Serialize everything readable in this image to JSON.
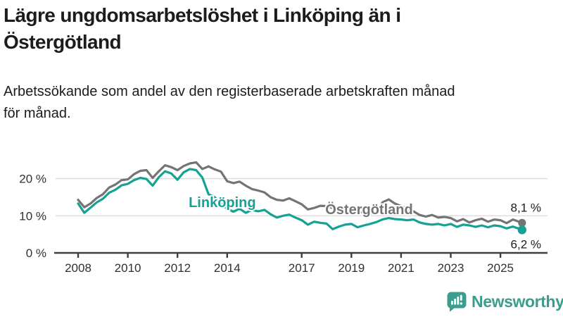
{
  "header": {
    "title_lines": [
      "Lägre ungdomsarbetslöshet i Linköping än i",
      "Östergötland"
    ],
    "subtitle_lines": [
      "Arbetssökande som andel av den registerbaserade arbetskraften månad",
      "för månad."
    ]
  },
  "chart_data": {
    "type": "line",
    "title": "Lägre ungdomsarbetslöshet i Linköping än i Östergötland",
    "subtitle": "Arbetssökande som andel av den registerbaserade arbetskraften månad för månad.",
    "unit": "%",
    "grid": "horizontal-only",
    "legend": "inline-series-labels",
    "xlim": [
      2007.8,
      2026.1
    ],
    "ylim": [
      0,
      27
    ],
    "x_ticks": [
      2008,
      2010,
      2012,
      2014,
      2017,
      2019,
      2021,
      2023,
      2025
    ],
    "x_tick_labels": [
      "2008",
      "2010",
      "2012",
      "2014",
      "2017",
      "2019",
      "2021",
      "2023",
      "2025"
    ],
    "y_ticks": [
      0,
      10,
      20
    ],
    "y_tick_labels": [
      "0 %",
      "10 %",
      "20 %"
    ],
    "x": [
      2008,
      2008.25,
      2008.5,
      2008.75,
      2009,
      2009.25,
      2009.5,
      2009.75,
      2010,
      2010.25,
      2010.5,
      2010.75,
      2011,
      2011.25,
      2011.5,
      2011.75,
      2012,
      2012.25,
      2012.5,
      2012.75,
      2013,
      2013.25,
      2013.5,
      2013.75,
      2014,
      2014.25,
      2014.5,
      2014.75,
      2015,
      2015.25,
      2015.5,
      2015.75,
      2016,
      2016.25,
      2016.5,
      2016.75,
      2017,
      2017.25,
      2017.5,
      2017.75,
      2018,
      2018.25,
      2018.5,
      2018.75,
      2019,
      2019.25,
      2019.5,
      2019.75,
      2020,
      2020.25,
      2020.5,
      2020.75,
      2021,
      2021.25,
      2021.5,
      2021.75,
      2022,
      2022.25,
      2022.5,
      2022.75,
      2023,
      2023.25,
      2023.5,
      2023.75,
      2024,
      2024.25,
      2024.5,
      2024.75,
      2025,
      2025.25,
      2025.5,
      2025.87
    ],
    "series": [
      {
        "name": "Östergötland",
        "color": "#747474",
        "end_value": 8.1,
        "end_label": "8,1 %",
        "label_pos": {
          "x": 2017.95,
          "y": 10.4
        },
        "dot_radius": 5.6,
        "end_label_offset": -16,
        "values": [
          14.3,
          12.3,
          13.3,
          14.8,
          15.8,
          17.6,
          18.4,
          19.6,
          19.8,
          21.2,
          22.1,
          22.3,
          20.2,
          22.0,
          23.6,
          23.1,
          22.3,
          23.4,
          24.1,
          24.4,
          22.6,
          23.3,
          22.5,
          21.9,
          19.3,
          18.8,
          19.2,
          18.1,
          17.2,
          16.8,
          16.3,
          15.0,
          14.3,
          14.1,
          14.7,
          13.9,
          13.1,
          11.7,
          12.1,
          12.7,
          12.6,
          12.1,
          11.9,
          12.3,
          11.6,
          11.1,
          10.9,
          10.6,
          10.9,
          13.6,
          14.4,
          13.3,
          12.6,
          12.0,
          11.2,
          10.2,
          9.8,
          10.2,
          9.5,
          9.7,
          9.4,
          8.5,
          9.1,
          8.2,
          8.8,
          9.2,
          8.4,
          9.0,
          8.8,
          8.0,
          9.0,
          8.1
        ]
      },
      {
        "name": "Linköping",
        "color": "#15A294",
        "end_value": 6.2,
        "end_label": "6,2 %",
        "label_pos": {
          "x": 2012.45,
          "y": 12.3
        },
        "dot_radius": 6.2,
        "end_label_offset": 26,
        "values": [
          13.3,
          10.8,
          12.2,
          13.6,
          14.6,
          16.2,
          17.0,
          18.2,
          18.6,
          19.6,
          20.2,
          19.9,
          18.1,
          20.4,
          22.0,
          21.4,
          19.7,
          21.7,
          22.6,
          22.3,
          20.3,
          15.8,
          15.0,
          13.2,
          11.9,
          11.1,
          11.9,
          10.8,
          11.6,
          11.2,
          11.6,
          10.4,
          9.5,
          10.0,
          10.3,
          9.5,
          8.8,
          7.6,
          8.4,
          8.1,
          7.9,
          6.4,
          7.1,
          7.6,
          7.8,
          6.9,
          7.4,
          7.8,
          8.3,
          9.0,
          9.4,
          9.1,
          9.0,
          8.8,
          9.0,
          8.2,
          7.8,
          7.6,
          7.8,
          7.4,
          7.8,
          7.0,
          7.6,
          7.4,
          7.0,
          7.4,
          6.9,
          7.4,
          7.2,
          6.6,
          7.1,
          6.2
        ]
      }
    ]
  },
  "branding": {
    "logo_text": "Newsworthy",
    "logo_color": "#3A9D8D"
  },
  "colors": {
    "axis": "#3F3F3F",
    "grid": "#DCDCDC",
    "tick_text": "#303030",
    "text": "#1C1C1C"
  }
}
